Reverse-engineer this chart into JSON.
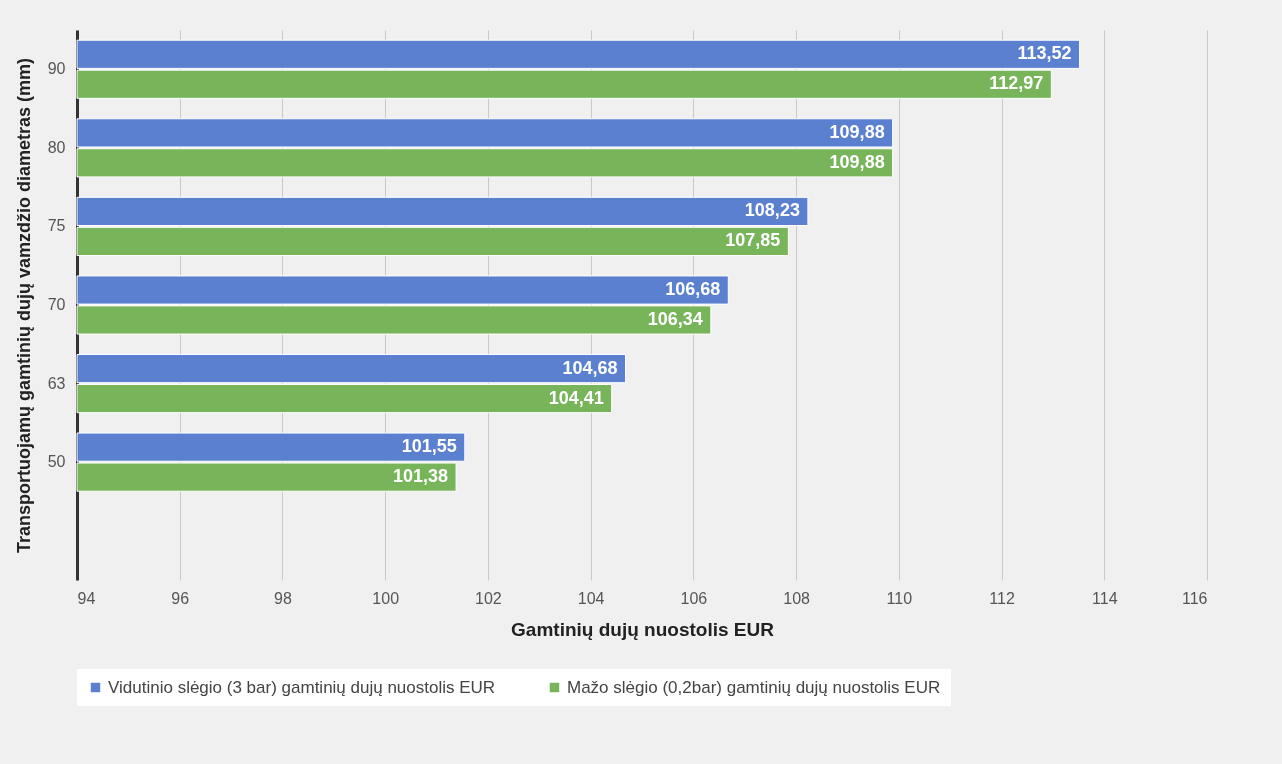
{
  "chart_data": {
    "type": "bar",
    "orientation": "horizontal",
    "xlabel": "Gamtinių dujų nuostolis EUR",
    "ylabel": "Transportuojamų gamtinių dujų vamzdžio diametras (mm)",
    "categories": [
      "90",
      "80",
      "75",
      "70",
      "63",
      "50",
      null
    ],
    "series": [
      {
        "name": "Vidutinio slėgio (3 bar) gamtinių dujų nuostolis EUR",
        "color": "#5b80d0",
        "values": [
          113.52,
          109.88,
          108.23,
          106.68,
          104.68,
          101.55,
          null
        ],
        "value_labels": [
          "113,52",
          "109,88",
          "108,23",
          "106,68",
          "104,68",
          "101,55",
          null
        ]
      },
      {
        "name": "Mažo slėgio (0,2bar) gamtinių dujų nuostolis EUR",
        "color": "#78b55a",
        "values": [
          112.97,
          109.88,
          107.85,
          106.34,
          104.41,
          101.38,
          null
        ],
        "value_labels": [
          "112,97",
          "109,88",
          "107,85",
          "106,34",
          "104,41",
          "101,38",
          null
        ]
      }
    ],
    "xlim": [
      94,
      116
    ],
    "xticks": [
      94,
      96,
      98,
      100,
      102,
      104,
      106,
      108,
      110,
      112,
      114,
      116
    ],
    "grid": "x",
    "legend": "bottom"
  }
}
